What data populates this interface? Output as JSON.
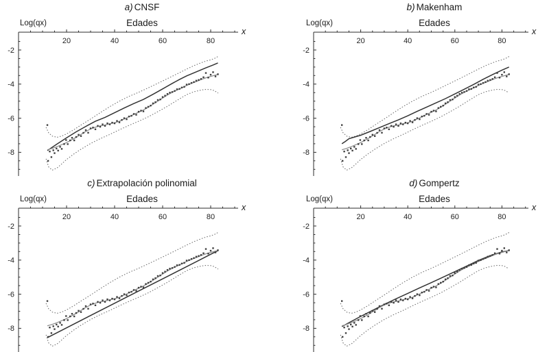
{
  "figure": {
    "panels": [
      {
        "label": "a)",
        "title": "CNSF",
        "x_title": "Edades",
        "y_label": "Log(qx)",
        "x_symbol": "x"
      },
      {
        "label": "b)",
        "title": "Makenham",
        "x_title": "Edades",
        "y_label": "Log(qx)",
        "x_symbol": "x"
      },
      {
        "label": "c)",
        "title": "Extrapolación polinomial",
        "x_title": "Edades",
        "y_label": "Log(qx)",
        "x_symbol": "x"
      },
      {
        "label": "d)",
        "title": "Gompertz",
        "x_title": "Edades",
        "y_label": "Log(qx)",
        "x_symbol": "x"
      }
    ]
  },
  "chart_data": {
    "type": "line",
    "subplots": [
      "a) CNSF",
      "b) Makenham",
      "c) Extrapolación polinomial",
      "d) Gompertz"
    ],
    "xlabel": "Edades",
    "ylabel": "Log(qx)",
    "x_axis_symbol": "x",
    "x_ticks": [
      20,
      40,
      60,
      80
    ],
    "y_ticks": [
      -2,
      -4,
      -6,
      -8
    ],
    "xlim": [
      0,
      91
    ],
    "ylim": [
      -9.4,
      -1
    ],
    "grid": false,
    "legend": "none",
    "colors": {
      "model": "#333333",
      "smoothed": "#8f8f8f",
      "points": "#3f3f3f",
      "band": "#6e6e6e",
      "axis": "#2b2b2b",
      "tick_label": "#222222"
    },
    "series": {
      "observed_points": [
        [
          12,
          -6.4
        ],
        [
          12.3,
          -8.5
        ],
        [
          13,
          -7.95
        ],
        [
          13.7,
          -8.28
        ],
        [
          14.5,
          -7.88
        ],
        [
          15,
          -8.05
        ],
        [
          15.8,
          -7.78
        ],
        [
          16.5,
          -7.9
        ],
        [
          17.3,
          -7.68
        ],
        [
          18,
          -7.8
        ],
        [
          19,
          -7.52
        ],
        [
          19.8,
          -7.28
        ],
        [
          20.5,
          -7.52
        ],
        [
          21.5,
          -7.3
        ],
        [
          22.3,
          -7.15
        ],
        [
          23.2,
          -7.3
        ],
        [
          24,
          -7.1
        ],
        [
          25,
          -6.97
        ],
        [
          26,
          -7.05
        ],
        [
          27,
          -6.86
        ],
        [
          28,
          -6.7
        ],
        [
          29,
          -6.85
        ],
        [
          30,
          -6.6
        ],
        [
          31,
          -6.55
        ],
        [
          32,
          -6.65
        ],
        [
          33,
          -6.45
        ],
        [
          34,
          -6.5
        ],
        [
          35,
          -6.36
        ],
        [
          36,
          -6.45
        ],
        [
          37,
          -6.3
        ],
        [
          38,
          -6.36
        ],
        [
          39,
          -6.26
        ],
        [
          40,
          -6.3
        ],
        [
          41,
          -6.16
        ],
        [
          42,
          -6.24
        ],
        [
          43,
          -6.1
        ],
        [
          44,
          -6.0
        ],
        [
          45,
          -6.06
        ],
        [
          46,
          -5.9
        ],
        [
          47,
          -5.86
        ],
        [
          48,
          -5.75
        ],
        [
          49,
          -5.8
        ],
        [
          50,
          -5.62
        ],
        [
          51,
          -5.56
        ],
        [
          52,
          -5.6
        ],
        [
          53,
          -5.4
        ],
        [
          54,
          -5.33
        ],
        [
          55,
          -5.26
        ],
        [
          56,
          -5.13
        ],
        [
          57,
          -5.06
        ],
        [
          58,
          -4.93
        ],
        [
          59,
          -4.9
        ],
        [
          60,
          -4.76
        ],
        [
          61,
          -4.68
        ],
        [
          62,
          -4.58
        ],
        [
          63,
          -4.5
        ],
        [
          64,
          -4.46
        ],
        [
          65,
          -4.4
        ],
        [
          66,
          -4.3
        ],
        [
          67,
          -4.28
        ],
        [
          68,
          -4.2
        ],
        [
          69,
          -4.16
        ],
        [
          70,
          -4.03
        ],
        [
          71,
          -4.0
        ],
        [
          72,
          -3.93
        ],
        [
          73,
          -3.88
        ],
        [
          74,
          -3.8
        ],
        [
          75,
          -3.76
        ],
        [
          76,
          -3.7
        ],
        [
          77,
          -3.6
        ],
        [
          78,
          -3.35
        ],
        [
          79,
          -3.62
        ],
        [
          80,
          -3.45
        ],
        [
          81,
          -3.3
        ],
        [
          82,
          -3.55
        ],
        [
          83,
          -3.42
        ]
      ],
      "smoothed": [
        [
          12,
          -7.85
        ],
        [
          14,
          -7.77
        ],
        [
          16,
          -7.67
        ],
        [
          18,
          -7.55
        ],
        [
          20,
          -7.43
        ],
        [
          22,
          -7.28
        ],
        [
          24,
          -7.12
        ],
        [
          26,
          -6.95
        ],
        [
          28,
          -6.78
        ],
        [
          30,
          -6.63
        ],
        [
          32,
          -6.53
        ],
        [
          34,
          -6.45
        ],
        [
          36,
          -6.4
        ],
        [
          38,
          -6.33
        ],
        [
          40,
          -6.27
        ],
        [
          42,
          -6.18
        ],
        [
          44,
          -6.05
        ],
        [
          46,
          -5.92
        ],
        [
          48,
          -5.78
        ],
        [
          50,
          -5.65
        ],
        [
          52,
          -5.52
        ],
        [
          54,
          -5.36
        ],
        [
          56,
          -5.18
        ],
        [
          58,
          -5.0
        ],
        [
          60,
          -4.82
        ],
        [
          62,
          -4.64
        ],
        [
          64,
          -4.48
        ],
        [
          66,
          -4.35
        ],
        [
          68,
          -4.22
        ],
        [
          70,
          -4.08
        ],
        [
          72,
          -3.96
        ],
        [
          74,
          -3.85
        ],
        [
          76,
          -3.73
        ],
        [
          78,
          -3.63
        ],
        [
          80,
          -3.55
        ],
        [
          82,
          -3.47
        ],
        [
          83,
          -3.44
        ]
      ],
      "upper_band": [
        [
          11.5,
          -6.55
        ],
        [
          12.5,
          -6.85
        ],
        [
          14,
          -7.05
        ],
        [
          16,
          -7.12
        ],
        [
          18,
          -7.05
        ],
        [
          20,
          -6.92
        ],
        [
          23,
          -6.68
        ],
        [
          26,
          -6.4
        ],
        [
          30,
          -6.05
        ],
        [
          34,
          -5.68
        ],
        [
          38,
          -5.32
        ],
        [
          42,
          -5.0
        ],
        [
          46,
          -4.72
        ],
        [
          50,
          -4.48
        ],
        [
          54,
          -4.22
        ],
        [
          58,
          -3.95
        ],
        [
          62,
          -3.68
        ],
        [
          66,
          -3.4
        ],
        [
          70,
          -3.12
        ],
        [
          73,
          -2.92
        ],
        [
          76,
          -2.75
        ],
        [
          78,
          -2.65
        ],
        [
          80,
          -2.58
        ],
        [
          81.5,
          -2.5
        ],
        [
          83,
          -2.38
        ]
      ],
      "lower_band": [
        [
          11.5,
          -8.4
        ],
        [
          12.5,
          -8.85
        ],
        [
          14,
          -9.05
        ],
        [
          16,
          -8.92
        ],
        [
          18,
          -8.68
        ],
        [
          20,
          -8.42
        ],
        [
          23,
          -8.1
        ],
        [
          26,
          -7.82
        ],
        [
          30,
          -7.48
        ],
        [
          34,
          -7.2
        ],
        [
          38,
          -6.95
        ],
        [
          42,
          -6.68
        ],
        [
          46,
          -6.42
        ],
        [
          50,
          -6.18
        ],
        [
          54,
          -5.92
        ],
        [
          58,
          -5.62
        ],
        [
          62,
          -5.3
        ],
        [
          66,
          -4.95
        ],
        [
          70,
          -4.62
        ],
        [
          73,
          -4.45
        ],
        [
          76,
          -4.35
        ],
        [
          78,
          -4.31
        ],
        [
          80,
          -4.32
        ],
        [
          81.5,
          -4.38
        ],
        [
          83,
          -4.52
        ]
      ],
      "models": [
        {
          "name": "CNSF",
          "points": [
            [
              12,
              -7.9
            ],
            [
              16,
              -7.52
            ],
            [
              20,
              -7.15
            ],
            [
              24,
              -6.8
            ],
            [
              28,
              -6.48
            ],
            [
              32,
              -6.18
            ],
            [
              36,
              -5.95
            ],
            [
              40,
              -5.68
            ],
            [
              44,
              -5.4
            ],
            [
              48,
              -5.14
            ],
            [
              52,
              -4.9
            ],
            [
              56,
              -4.6
            ],
            [
              60,
              -4.28
            ],
            [
              64,
              -3.96
            ],
            [
              67,
              -3.73
            ],
            [
              70,
              -3.52
            ],
            [
              74,
              -3.28
            ],
            [
              78,
              -3.05
            ],
            [
              81,
              -2.88
            ],
            [
              83,
              -2.76
            ]
          ]
        },
        {
          "name": "Makenham",
          "points": [
            [
              12,
              -7.5
            ],
            [
              13.5,
              -7.36
            ],
            [
              15,
              -7.2
            ],
            [
              17,
              -7.12
            ],
            [
              20,
              -7.0
            ],
            [
              24,
              -6.78
            ],
            [
              28,
              -6.55
            ],
            [
              32,
              -6.32
            ],
            [
              36,
              -6.1
            ],
            [
              40,
              -5.86
            ],
            [
              44,
              -5.6
            ],
            [
              48,
              -5.35
            ],
            [
              52,
              -5.1
            ],
            [
              56,
              -4.85
            ],
            [
              60,
              -4.58
            ],
            [
              64,
              -4.3
            ],
            [
              68,
              -4.02
            ],
            [
              72,
              -3.72
            ],
            [
              76,
              -3.44
            ],
            [
              80,
              -3.18
            ],
            [
              83,
              -3.0
            ]
          ]
        },
        {
          "name": "Extrapolación polinomial",
          "points": [
            [
              12,
              -8.55
            ],
            [
              20,
              -7.97
            ],
            [
              30,
              -7.25
            ],
            [
              40,
              -6.53
            ],
            [
              50,
              -5.81
            ],
            [
              60,
              -5.1
            ],
            [
              70,
              -4.38
            ],
            [
              76,
              -3.95
            ],
            [
              80,
              -3.66
            ],
            [
              83,
              -3.45
            ]
          ]
        },
        {
          "name": "Gompertz",
          "points": [
            [
              12,
              -7.9
            ],
            [
              16,
              -7.6
            ],
            [
              20,
              -7.3
            ],
            [
              25,
              -6.95
            ],
            [
              30,
              -6.6
            ],
            [
              35,
              -6.27
            ],
            [
              40,
              -5.95
            ],
            [
              45,
              -5.63
            ],
            [
              50,
              -5.32
            ],
            [
              55,
              -5.0
            ],
            [
              60,
              -4.68
            ],
            [
              65,
              -4.35
            ],
            [
              70,
              -4.02
            ],
            [
              75,
              -3.74
            ],
            [
              80,
              -3.52
            ],
            [
              83,
              -3.44
            ]
          ]
        }
      ]
    }
  }
}
